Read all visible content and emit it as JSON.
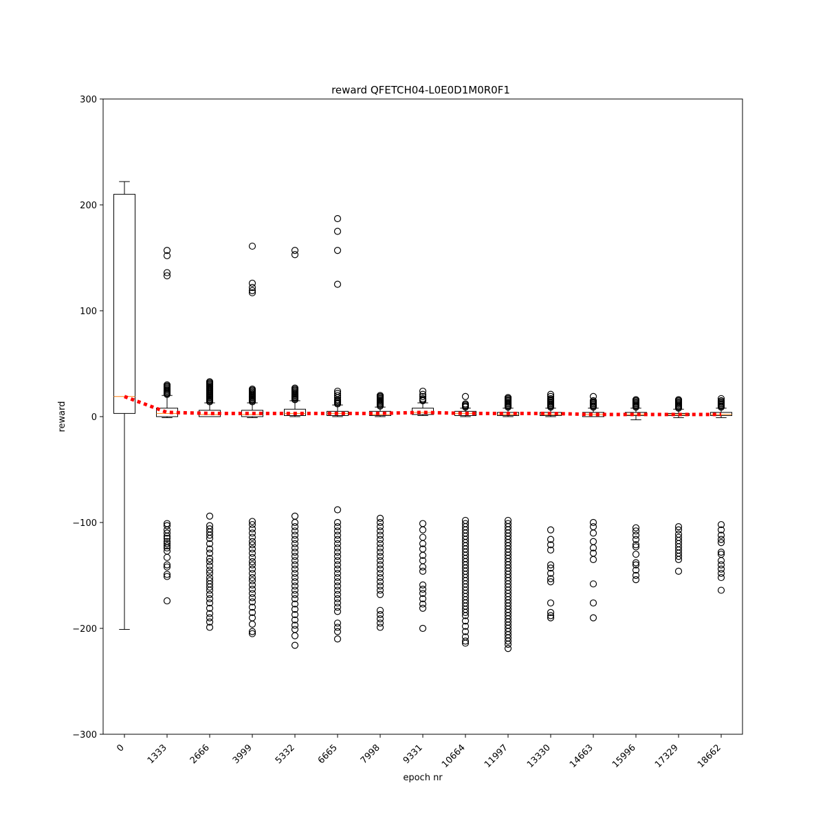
{
  "chart_data": {
    "type": "box",
    "title": "reward QFETCH04-L0E0D1M0R0F1",
    "xlabel": "epoch nr",
    "ylabel": "reward",
    "ylim": [
      -300,
      300
    ],
    "yticks": [
      -300,
      -200,
      -100,
      0,
      100,
      200,
      300
    ],
    "categories": [
      "0",
      "1333",
      "2666",
      "3999",
      "5332",
      "6665",
      "7998",
      "9331",
      "10664",
      "11997",
      "13330",
      "14663",
      "15996",
      "17329",
      "18662"
    ],
    "colors": {
      "box": "#000000",
      "median": "#ff7f0e",
      "mean_line": "#ff0000"
    },
    "boxes": [
      {
        "q1": 3,
        "median": 19,
        "q3": 210,
        "whisker_low": -201,
        "whisker_high": 222,
        "outliers": []
      },
      {
        "q1": 0,
        "median": 3,
        "q3": 8,
        "whisker_low": -1,
        "whisker_high": 20,
        "outliers": [
          157,
          152,
          136,
          133,
          30,
          29,
          28,
          27,
          26,
          25,
          24,
          23,
          22,
          21,
          -101,
          -103,
          -107,
          -110,
          -113,
          -115,
          -118,
          -120,
          -122,
          -124,
          -127,
          -133,
          -140,
          -142,
          -149,
          -151,
          -174
        ]
      },
      {
        "q1": 0,
        "median": 2,
        "q3": 6,
        "whisker_low": 0,
        "whisker_high": 13,
        "outliers": [
          33,
          32,
          31,
          30,
          29,
          28,
          27,
          26,
          25,
          24,
          23,
          22,
          21,
          20,
          19,
          18,
          17,
          16,
          15,
          14,
          -94,
          -103,
          -106,
          -109,
          -112,
          -115,
          -120,
          -125,
          -129,
          -134,
          -137,
          -141,
          -145,
          -148,
          -152,
          -155,
          -158,
          -161,
          -164,
          -168,
          -172,
          -176,
          -181,
          -186,
          -190,
          -194,
          -199
        ]
      },
      {
        "q1": 0,
        "median": 2,
        "q3": 6,
        "whisker_low": -1,
        "whisker_high": 13,
        "outliers": [
          161,
          126,
          122,
          119,
          117,
          26,
          25,
          24,
          23,
          22,
          21,
          20,
          19,
          18,
          17,
          16,
          15,
          14,
          -99,
          -102,
          -106,
          -110,
          -114,
          -118,
          -121,
          -125,
          -129,
          -133,
          -137,
          -140,
          -144,
          -148,
          -152,
          -155,
          -159,
          -163,
          -167,
          -171,
          -175,
          -180,
          -185,
          -190,
          -196,
          -203,
          -205
        ]
      },
      {
        "q1": 1,
        "median": 3,
        "q3": 7,
        "whisker_low": 0,
        "whisker_high": 15,
        "outliers": [
          157,
          153,
          27,
          26,
          25,
          24,
          23,
          22,
          21,
          20,
          19,
          18,
          17,
          16,
          -94,
          -100,
          -104,
          -108,
          -112,
          -116,
          -120,
          -124,
          -128,
          -132,
          -136,
          -140,
          -144,
          -148,
          -152,
          -156,
          -160,
          -164,
          -168,
          -172,
          -177,
          -182,
          -187,
          -192,
          -197,
          -201,
          -207,
          -216
        ]
      },
      {
        "q1": 1,
        "median": 3,
        "q3": 5,
        "whisker_low": 0,
        "whisker_high": 11,
        "outliers": [
          187,
          175,
          157,
          125,
          24,
          22,
          20,
          18,
          16,
          15,
          14,
          13,
          12,
          -88,
          -100,
          -104,
          -108,
          -112,
          -116,
          -120,
          -124,
          -128,
          -132,
          -136,
          -140,
          -144,
          -148,
          -152,
          -156,
          -160,
          -164,
          -168,
          -172,
          -176,
          -180,
          -184,
          -195,
          -199,
          -203,
          -210
        ]
      },
      {
        "q1": 1,
        "median": 2,
        "q3": 5,
        "whisker_low": 0,
        "whisker_high": 9,
        "outliers": [
          20,
          19,
          18,
          17,
          16,
          15,
          14,
          13,
          12,
          11,
          10,
          -96,
          -100,
          -104,
          -108,
          -112,
          -116,
          -120,
          -124,
          -128,
          -132,
          -136,
          -140,
          -144,
          -148,
          -152,
          -156,
          -160,
          -164,
          -168,
          -183,
          -187,
          -191,
          -195,
          -199
        ]
      },
      {
        "q1": 2,
        "median": 4,
        "q3": 8,
        "whisker_low": 1,
        "whisker_high": 13,
        "outliers": [
          24,
          21,
          19,
          17,
          16,
          15,
          -101,
          -107,
          -114,
          -120,
          -125,
          -131,
          -136,
          -142,
          -146,
          -159,
          -163,
          -167,
          -172,
          -177,
          -181,
          -200
        ]
      },
      {
        "q1": 1,
        "median": 3,
        "q3": 5,
        "whisker_low": 0,
        "whisker_high": 8,
        "outliers": [
          19,
          12,
          11,
          10,
          9,
          -98,
          -101,
          -104,
          -107,
          -110,
          -113,
          -116,
          -119,
          -122,
          -125,
          -128,
          -131,
          -134,
          -137,
          -140,
          -143,
          -146,
          -149,
          -152,
          -155,
          -158,
          -161,
          -164,
          -167,
          -170,
          -173,
          -176,
          -179,
          -182,
          -185,
          -188,
          -193,
          -198,
          -203,
          -208,
          -212,
          -214
        ]
      },
      {
        "q1": 1,
        "median": 2,
        "q3": 4,
        "whisker_low": 0,
        "whisker_high": 8,
        "outliers": [
          18,
          17,
          16,
          15,
          14,
          13,
          12,
          11,
          10,
          9,
          -98,
          -101,
          -104,
          -107,
          -110,
          -113,
          -116,
          -119,
          -122,
          -125,
          -128,
          -131,
          -134,
          -137,
          -140,
          -143,
          -146,
          -149,
          -152,
          -155,
          -158,
          -161,
          -164,
          -167,
          -170,
          -173,
          -176,
          -179,
          -182,
          -185,
          -188,
          -191,
          -194,
          -197,
          -200,
          -203,
          -206,
          -209,
          -212,
          -215,
          -219
        ]
      },
      {
        "q1": 1,
        "median": 2,
        "q3": 4,
        "whisker_low": 0,
        "whisker_high": 8,
        "outliers": [
          21,
          19,
          17,
          16,
          15,
          14,
          13,
          12,
          11,
          10,
          9,
          -107,
          -116,
          -121,
          -126,
          -140,
          -143,
          -148,
          -153,
          -156,
          -176,
          -185,
          -188,
          -190
        ]
      },
      {
        "q1": 0,
        "median": 2,
        "q3": 4,
        "whisker_low": 0,
        "whisker_high": 8,
        "outliers": [
          19,
          15,
          14,
          13,
          12,
          11,
          10,
          9,
          -100,
          -104,
          -110,
          -118,
          -124,
          -129,
          -135,
          -158,
          -176,
          -190
        ]
      },
      {
        "q1": 1,
        "median": 2,
        "q3": 4,
        "whisker_low": -3,
        "whisker_high": 8,
        "outliers": [
          16,
          15,
          14,
          13,
          12,
          11,
          10,
          9,
          -105,
          -108,
          -112,
          -116,
          -121,
          -123,
          -130,
          -138,
          -140,
          -145,
          -150,
          -154
        ]
      },
      {
        "q1": 1,
        "median": 2,
        "q3": 3,
        "whisker_low": -1,
        "whisker_high": 7,
        "outliers": [
          16,
          15,
          14,
          13,
          12,
          11,
          10,
          9,
          8,
          -104,
          -107,
          -111,
          -114,
          -117,
          -120,
          -123,
          -126,
          -129,
          -132,
          -135,
          -146
        ]
      },
      {
        "q1": 1,
        "median": 2,
        "q3": 4,
        "whisker_low": -1,
        "whisker_high": 8,
        "outliers": [
          17,
          15,
          14,
          13,
          12,
          11,
          10,
          9,
          -102,
          -107,
          -112,
          -116,
          -119,
          -128,
          -130,
          -136,
          -140,
          -144,
          -148,
          -152,
          -164
        ]
      }
    ],
    "mean_line": [
      19,
      4,
      3,
      3,
      3,
      3,
      3,
      4,
      3,
      3,
      3,
      2,
      2,
      2,
      2
    ]
  }
}
